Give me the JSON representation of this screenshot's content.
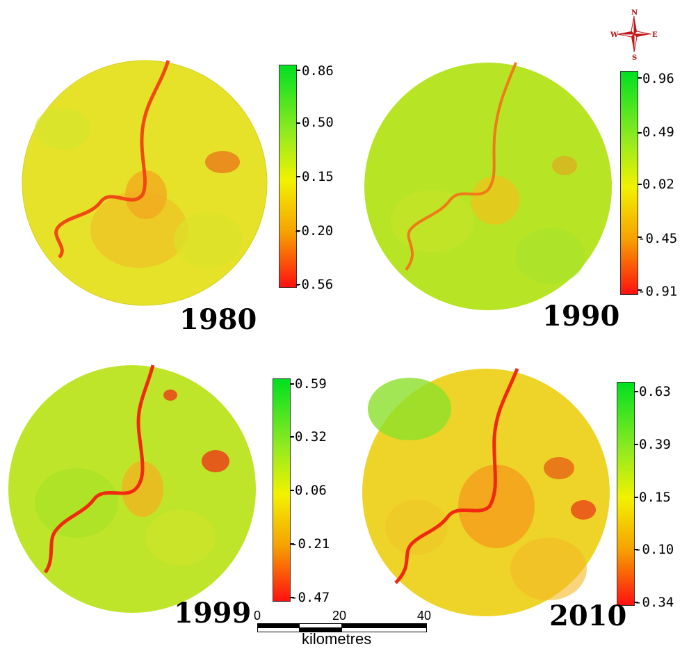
{
  "compass": {
    "n": "N",
    "s": "S",
    "e": "E",
    "w": "W"
  },
  "panels": [
    {
      "year": "1980",
      "ticks": [
        "0.86",
        "0.50",
        "0.15",
        "-0.20",
        "-0.56"
      ],
      "mean_ndvi_color": "#e6e22a",
      "urban_color": "#f4a41c"
    },
    {
      "year": "1990",
      "ticks": [
        "0.96",
        "0.49",
        "0.02",
        "-0.45",
        "-0.91"
      ],
      "mean_ndvi_color": "#b8e426",
      "urban_color": "#f2c018"
    },
    {
      "year": "1999",
      "ticks": [
        "0.59",
        "0.32",
        "0.06",
        "-0.21",
        "-0.47"
      ],
      "mean_ndvi_color": "#bfe52a",
      "urban_color": "#f4b020"
    },
    {
      "year": "2010",
      "ticks": [
        "0.63",
        "0.39",
        "0.15",
        "-0.10",
        "-0.34"
      ],
      "mean_ndvi_color": "#eed428",
      "urban_color": "#f49a1a"
    }
  ],
  "scale_bar": {
    "labels": [
      "0",
      "20",
      "40"
    ],
    "unit": "kilometres"
  },
  "colors": {
    "high": "#00e020",
    "mid": "#f2f200",
    "low": "#ff1010",
    "river": "#f04a14"
  }
}
